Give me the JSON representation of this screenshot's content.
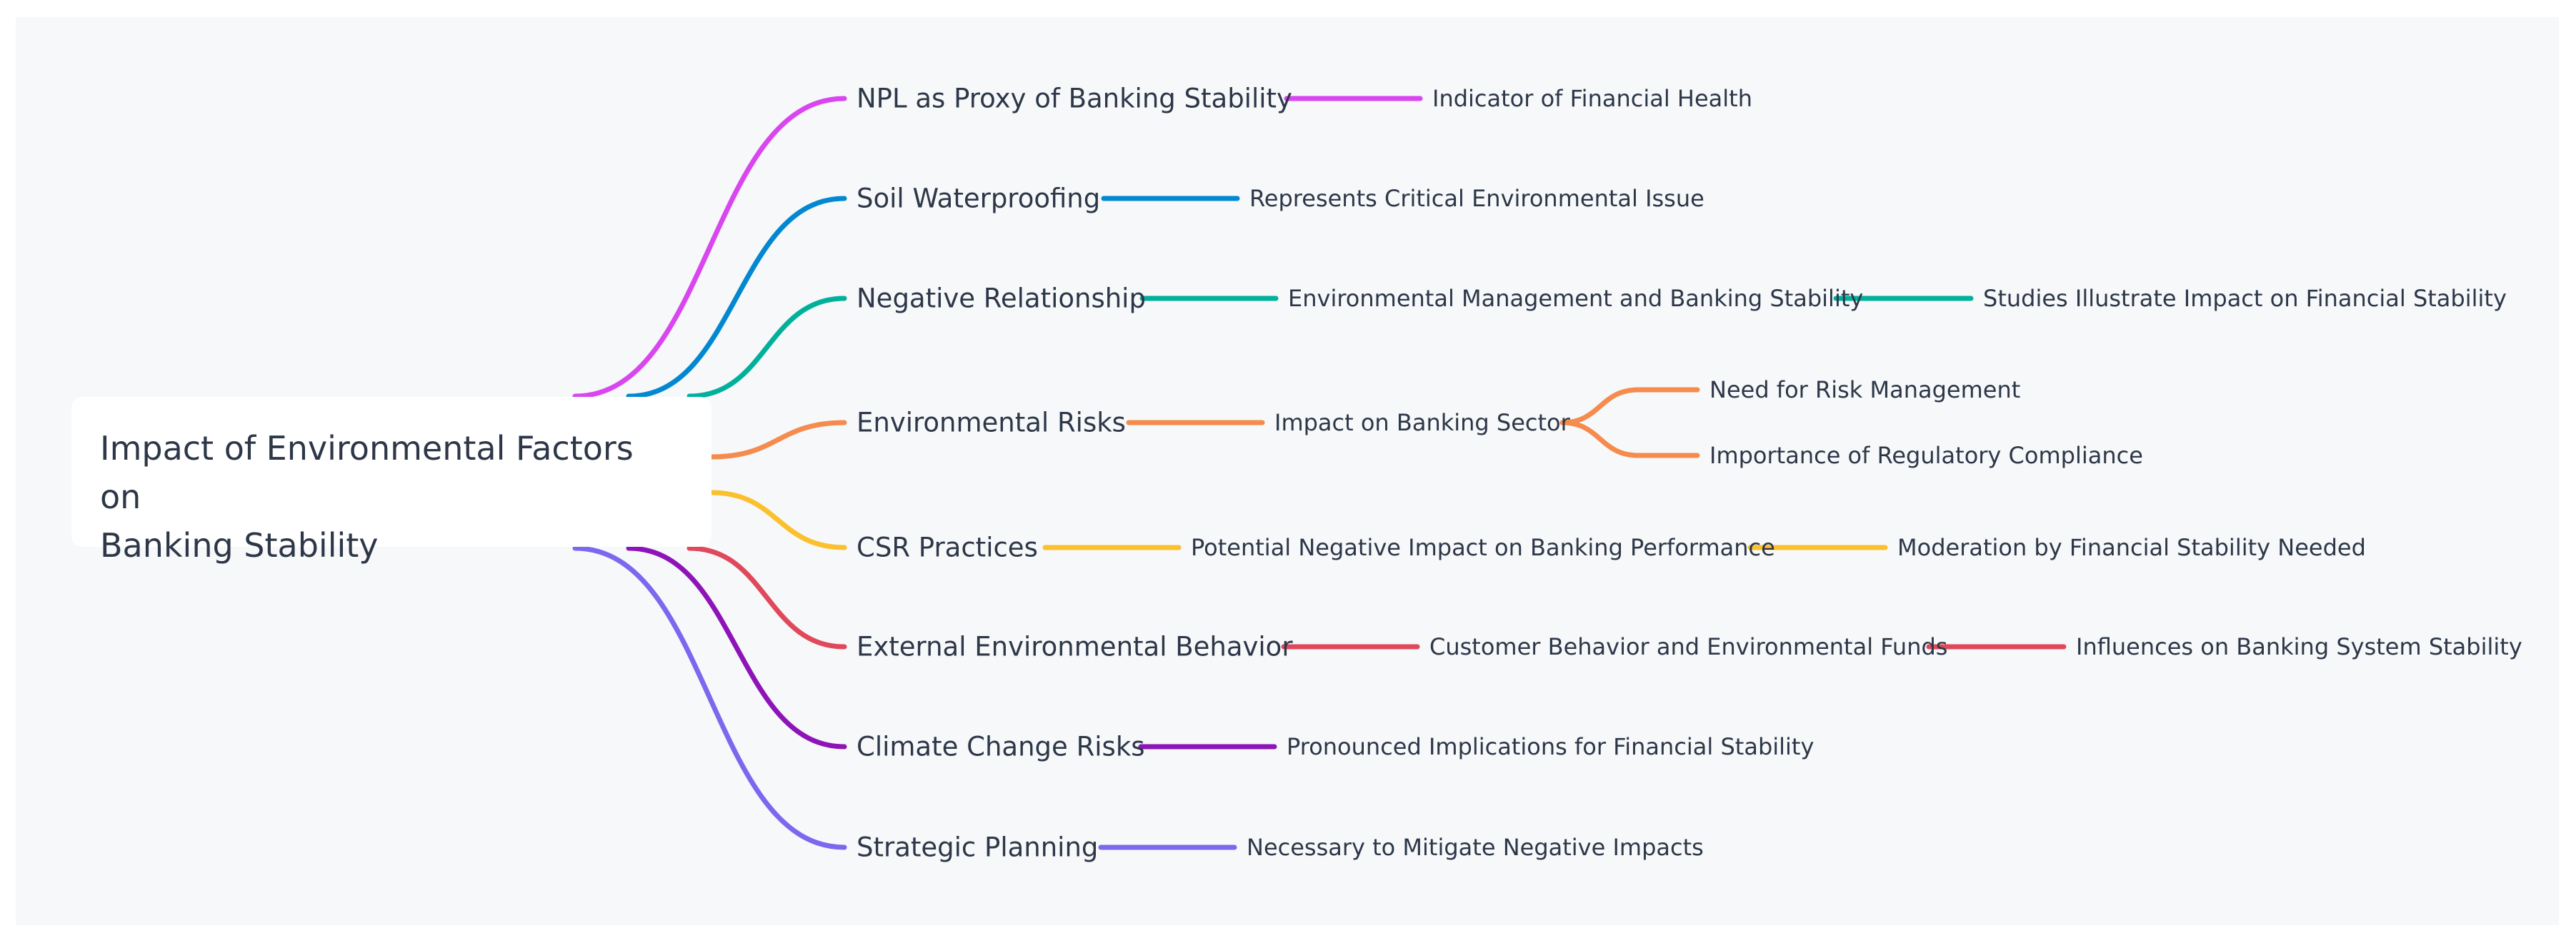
{
  "root": {
    "title_line1": "Impact of Environmental Factors on",
    "title_line2": "Banking Stability"
  },
  "branches": [
    {
      "label": "NPL as Proxy of Banking Stability",
      "color": "#d946ef",
      "children": [
        {
          "label": "Indicator of Financial Health",
          "children": []
        }
      ]
    },
    {
      "label": "Soil Waterproofing",
      "color": "#0288d1",
      "children": [
        {
          "label": "Represents Critical Environmental Issue",
          "children": []
        }
      ]
    },
    {
      "label": "Negative Relationship",
      "color": "#00b09b",
      "children": [
        {
          "label": "Environmental Management and Banking Stability",
          "children": [
            {
              "label": "Studies Illustrate Impact on Financial Stability"
            }
          ]
        }
      ]
    },
    {
      "label": "Environmental Risks",
      "color": "#f58b4c",
      "children": [
        {
          "label": "Impact on Banking Sector",
          "children": [
            {
              "label": "Need for Risk Management"
            },
            {
              "label": "Importance of Regulatory Compliance"
            }
          ]
        }
      ]
    },
    {
      "label": "CSR Practices",
      "color": "#fbc02d",
      "children": [
        {
          "label": "Potential Negative Impact on Banking Performance",
          "children": [
            {
              "label": "Moderation by Financial Stability Needed"
            }
          ]
        }
      ]
    },
    {
      "label": "External Environmental Behavior",
      "color": "#e0495b",
      "children": [
        {
          "label": "Customer Behavior and Environmental Funds",
          "children": [
            {
              "label": "Influences on Banking System Stability"
            }
          ]
        }
      ]
    },
    {
      "label": "Climate Change Risks",
      "color": "#8e14b8",
      "children": [
        {
          "label": "Pronounced Implications for Financial Stability",
          "children": []
        }
      ]
    },
    {
      "label": "Strategic Planning",
      "color": "#7b68ee",
      "children": [
        {
          "label": "Necessary to Mitigate Negative Impacts",
          "children": []
        }
      ]
    }
  ]
}
